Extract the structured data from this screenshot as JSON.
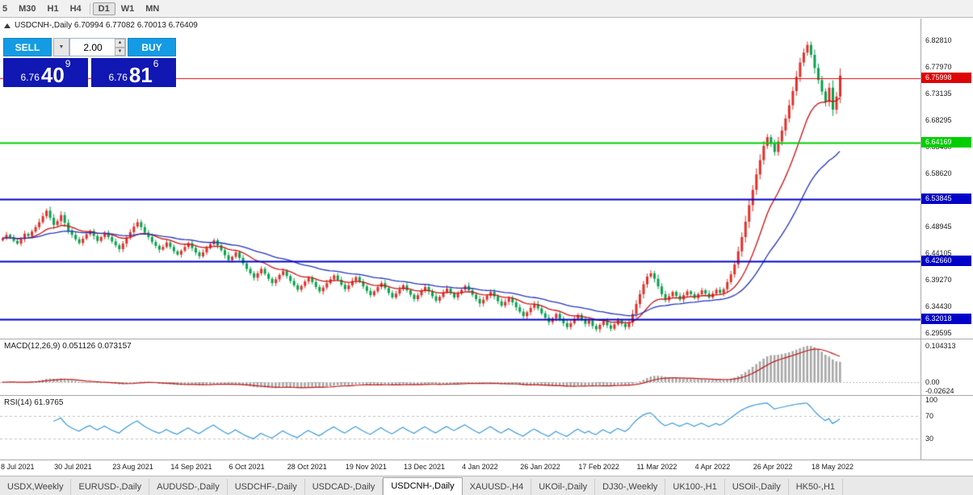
{
  "toolbar": {
    "items": [
      "5",
      "M30",
      "H1",
      "H4",
      "D1",
      "W1",
      "MN"
    ],
    "active": "D1",
    "separator_after_index": 3
  },
  "chart": {
    "title": "USDCNH-,Daily 6.70994 6.77082 6.70013 6.76409"
  },
  "trade": {
    "sell_label": "SELL",
    "buy_label": "BUY",
    "lot_size": "2.00",
    "sell_price": {
      "prefix": "6.76",
      "big": "40",
      "sup": "9"
    },
    "buy_price": {
      "prefix": "6.76",
      "big": "81",
      "sup": "6"
    }
  },
  "chart_data": {
    "type": "candlestick",
    "symbol": "USDCNH-",
    "timeframe": "Daily",
    "last_ohlc": {
      "open": 6.70994,
      "high": 6.77082,
      "low": 6.70013,
      "close": 6.76409
    },
    "y_range": [
      6.285,
      6.868
    ],
    "price_ticks": [
      {
        "label": "6.82810",
        "value": 6.8281
      },
      {
        "label": "6.77970",
        "value": 6.7797
      },
      {
        "label": "6.73135",
        "value": 6.73135
      },
      {
        "label": "6.68295",
        "value": 6.68295
      },
      {
        "label": "6.63460",
        "value": 6.6346
      },
      {
        "label": "6.58620",
        "value": 6.5862
      },
      {
        "label": "6.53780",
        "value": 6.5378
      },
      {
        "label": "6.48945",
        "value": 6.48945
      },
      {
        "label": "6.44105",
        "value": 6.44105
      },
      {
        "label": "6.39270",
        "value": 6.3927
      },
      {
        "label": "6.34430",
        "value": 6.3443
      },
      {
        "label": "6.29595",
        "value": 6.29595
      }
    ],
    "levels": [
      {
        "label": "6.75998",
        "value": 6.75998,
        "color": "#dd0505",
        "width": 1
      },
      {
        "label": "6.64169",
        "value": 6.64169,
        "color": "#00ce00",
        "width": 2
      },
      {
        "label": "6.53845",
        "value": 6.53845,
        "color": "#0202c8",
        "width": 2
      },
      {
        "label": "6.42660",
        "value": 6.4266,
        "color": "#0202c8",
        "width": 2
      },
      {
        "label": "6.32018",
        "value": 6.32018,
        "color": "#0202c8",
        "width": 2
      }
    ],
    "moving_averages": [
      {
        "period": 16,
        "color": "#cc1111"
      },
      {
        "period": 40,
        "color": "#2233bb"
      }
    ],
    "closes": [
      6.468,
      6.474,
      6.47,
      6.463,
      6.458,
      6.466,
      6.476,
      6.472,
      6.48,
      6.488,
      6.497,
      6.508,
      6.518,
      6.505,
      6.492,
      6.499,
      6.51,
      6.496,
      6.482,
      6.474,
      6.466,
      6.459,
      6.467,
      6.475,
      6.481,
      6.472,
      6.463,
      6.47,
      6.478,
      6.47,
      6.462,
      6.455,
      6.448,
      6.458,
      6.469,
      6.479,
      6.489,
      6.497,
      6.488,
      6.478,
      6.47,
      6.461,
      6.454,
      6.447,
      6.452,
      6.46,
      6.452,
      6.444,
      6.438,
      6.445,
      6.452,
      6.459,
      6.45,
      6.442,
      6.435,
      6.442,
      6.45,
      6.457,
      6.464,
      6.455,
      6.446,
      6.437,
      6.428,
      6.434,
      6.442,
      6.432,
      6.422,
      6.412,
      6.404,
      6.396,
      6.404,
      6.412,
      6.403,
      6.394,
      6.386,
      6.393,
      6.401,
      6.408,
      6.399,
      6.39,
      6.382,
      6.374,
      6.381,
      6.389,
      6.396,
      6.388,
      6.379,
      6.371,
      6.378,
      6.386,
      6.393,
      6.4,
      6.392,
      6.383,
      6.375,
      6.382,
      6.39,
      6.397,
      6.389,
      6.38,
      6.372,
      6.364,
      6.371,
      6.379,
      6.386,
      6.377,
      6.368,
      6.36,
      6.367,
      6.375,
      6.382,
      6.373,
      6.365,
      6.357,
      6.364,
      6.372,
      6.379,
      6.371,
      6.362,
      6.354,
      6.361,
      6.369,
      6.376,
      6.368,
      6.36,
      6.367,
      6.374,
      6.381,
      6.373,
      6.365,
      6.357,
      6.349,
      6.356,
      6.363,
      6.37,
      6.362,
      6.353,
      6.345,
      6.352,
      6.359,
      6.351,
      6.342,
      6.334,
      6.326,
      6.333,
      6.341,
      6.348,
      6.34,
      6.331,
      6.323,
      6.315,
      6.322,
      6.33,
      6.321,
      6.313,
      6.306,
      6.313,
      6.321,
      6.328,
      6.32,
      6.312,
      6.318,
      6.308,
      6.302,
      6.31,
      6.317,
      6.309,
      6.303,
      6.311,
      6.318,
      6.312,
      6.306,
      6.314,
      6.33,
      6.348,
      6.366,
      6.384,
      6.398,
      6.404,
      6.394,
      6.38,
      6.366,
      6.355,
      6.362,
      6.37,
      6.363,
      6.356,
      6.364,
      6.371,
      6.366,
      6.359,
      6.366,
      6.373,
      6.367,
      6.36,
      6.367,
      6.374,
      6.368,
      6.375,
      6.388,
      6.402,
      6.42,
      6.444,
      6.47,
      6.498,
      6.528,
      6.556,
      6.584,
      6.61,
      6.636,
      6.652,
      6.64,
      6.625,
      6.644,
      6.664,
      6.686,
      6.71,
      6.736,
      6.762,
      6.788,
      6.806,
      6.82,
      6.802,
      6.778,
      6.756,
      6.735,
      6.716,
      6.742,
      6.702,
      6.726,
      6.764
    ],
    "date_ticks": [
      {
        "label": "8 Jul 2021",
        "bar": 0
      },
      {
        "label": "30 Jul 2021",
        "bar": 16
      },
      {
        "label": "23 Aug 2021",
        "bar": 32
      },
      {
        "label": "14 Sep 2021",
        "bar": 48
      },
      {
        "label": "6 Oct 2021",
        "bar": 64
      },
      {
        "label": "28 Oct 2021",
        "bar": 80
      },
      {
        "label": "19 Nov 2021",
        "bar": 96
      },
      {
        "label": "13 Dec 2021",
        "bar": 112
      },
      {
        "label": "4 Jan 2022",
        "bar": 128
      },
      {
        "label": "26 Jan 2022",
        "bar": 144
      },
      {
        "label": "17 Feb 2022",
        "bar": 160
      },
      {
        "label": "11 Mar 2022",
        "bar": 176
      },
      {
        "label": "4 Apr 2022",
        "bar": 192
      },
      {
        "label": "26 Apr 2022",
        "bar": 208
      },
      {
        "label": "18 May 2022",
        "bar": 224
      }
    ],
    "indicators": {
      "macd": {
        "label": "MACD(12,26,9) 0.051126 0.073157",
        "params": [
          12,
          26,
          9
        ],
        "main": 0.051126,
        "signal": 0.073157,
        "peak": 0.104313,
        "range": [
          -0.03,
          0.118
        ],
        "axis_ticks": [
          {
            "label": "0.104313",
            "value": 0.104313
          },
          {
            "label": "0.00",
            "value": 0
          },
          {
            "label": "-0.02624",
            "value": -0.02624
          }
        ]
      },
      "rsi": {
        "label": "RSI(14) 61.9765",
        "period": 14,
        "value": 61.9765,
        "guide_levels": [
          70,
          30
        ],
        "axis_ticks": [
          {
            "label": "100",
            "value": 100
          },
          {
            "label": "70",
            "value": 70
          },
          {
            "label": "30",
            "value": 30
          }
        ]
      }
    }
  },
  "tabs": {
    "active_index": 5,
    "items": [
      "USDX,Weekly",
      "EURUSD-,Daily",
      "AUDUSD-,Daily",
      "USDCHF-,Daily",
      "USDCAD-,Daily",
      "USDCNH-,Daily",
      "XAUUSD-,H4",
      "UKOil-,Daily",
      "DJ30-,Weekly",
      "UK100-,H1",
      "USOil-,Daily",
      "HK50-,H1"
    ]
  },
  "colors": {
    "candle_up": "#e1302a",
    "candle_down": "#0aa14e",
    "macd_hist": "#a8a8a8",
    "macd_signal": "#c41414",
    "rsi_line": "#3a99d9",
    "guide_gray": "#c0c0c0",
    "button_blue": "#149be4",
    "price_box_navy": "#1117b2"
  }
}
